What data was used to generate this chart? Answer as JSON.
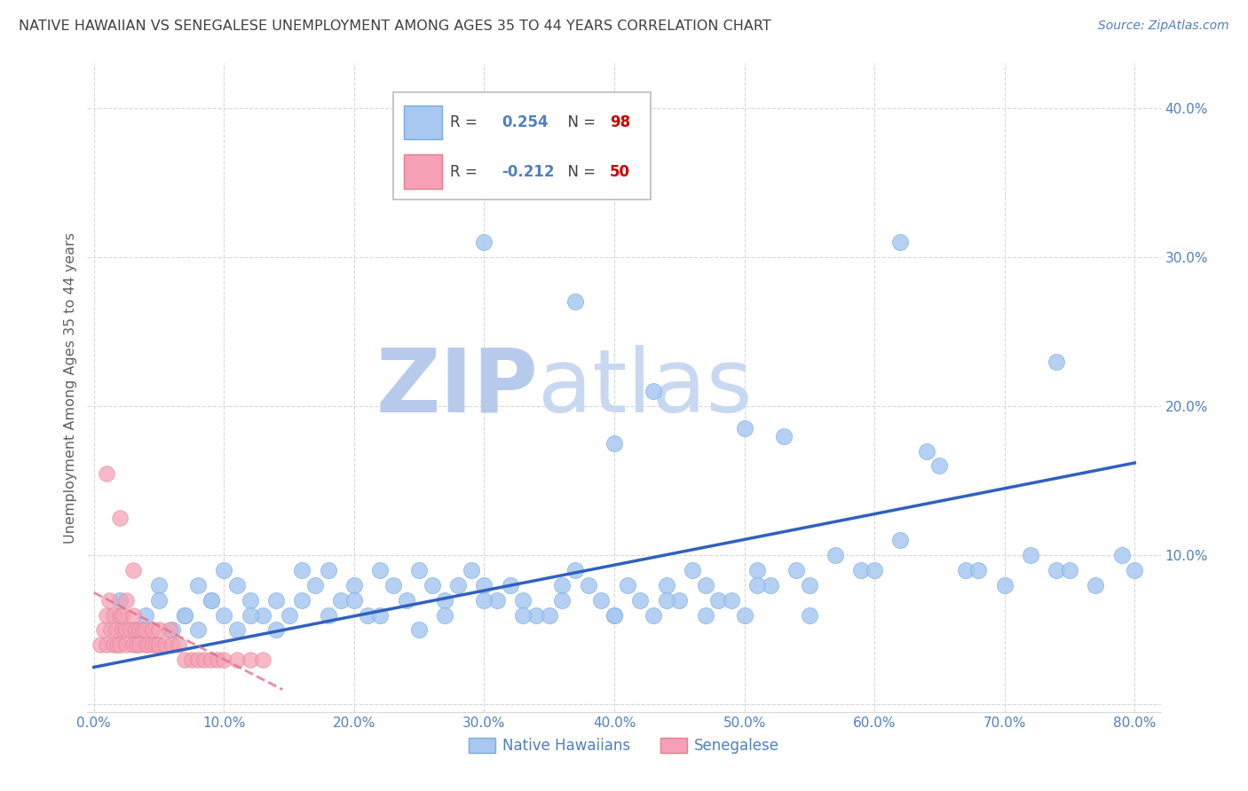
{
  "title": "NATIVE HAWAIIAN VS SENEGALESE UNEMPLOYMENT AMONG AGES 35 TO 44 YEARS CORRELATION CHART",
  "source": "Source: ZipAtlas.com",
  "ylabel": "Unemployment Among Ages 35 to 44 years",
  "xlim": [
    -0.005,
    0.82
  ],
  "ylim": [
    -0.005,
    0.43
  ],
  "yticks": [
    0.0,
    0.1,
    0.2,
    0.3,
    0.4
  ],
  "xticks": [
    0.0,
    0.1,
    0.2,
    0.3,
    0.4,
    0.5,
    0.6,
    0.7,
    0.8
  ],
  "color_blue": "#a8c8f0",
  "color_pink": "#f5a0b5",
  "line_blue": "#3060c0",
  "line_pink": "#e07090",
  "watermark_zip": "ZIP",
  "watermark_atlas": "atlas",
  "watermark_color": "#d0dff5",
  "title_color": "#404040",
  "source_color": "#5080c0",
  "ylabel_color": "#606060",
  "tick_color": "#5080c0",
  "grid_color": "#d8d8d8",
  "blue_trend_x0": 0.0,
  "blue_trend_y0": 0.025,
  "blue_trend_x1": 0.8,
  "blue_trend_y1": 0.162,
  "pink_trend_x0": 0.0,
  "pink_trend_y0": 0.075,
  "pink_trend_x1": 0.145,
  "pink_trend_y1": 0.01,
  "nhawaiian_x": [
    0.02,
    0.05,
    0.06,
    0.07,
    0.08,
    0.09,
    0.1,
    0.11,
    0.12,
    0.13,
    0.14,
    0.15,
    0.16,
    0.17,
    0.18,
    0.19,
    0.2,
    0.21,
    0.22,
    0.23,
    0.24,
    0.25,
    0.26,
    0.27,
    0.28,
    0.29,
    0.3,
    0.31,
    0.32,
    0.33,
    0.34,
    0.35,
    0.36,
    0.37,
    0.38,
    0.39,
    0.4,
    0.41,
    0.42,
    0.43,
    0.44,
    0.45,
    0.46,
    0.47,
    0.48,
    0.49,
    0.5,
    0.51,
    0.52,
    0.54,
    0.55,
    0.57,
    0.59,
    0.6,
    0.62,
    0.64,
    0.65,
    0.67,
    0.68,
    0.7,
    0.72,
    0.74,
    0.75,
    0.77,
    0.79,
    0.8,
    0.03,
    0.04,
    0.05,
    0.07,
    0.08,
    0.09,
    0.1,
    0.11,
    0.12,
    0.14,
    0.16,
    0.18,
    0.2,
    0.22,
    0.25,
    0.27,
    0.3,
    0.33,
    0.36,
    0.4,
    0.44,
    0.47,
    0.51,
    0.55,
    0.3,
    0.37,
    0.43,
    0.53,
    0.62,
    0.74,
    0.5,
    0.4
  ],
  "nhawaiian_y": [
    0.07,
    0.08,
    0.05,
    0.06,
    0.08,
    0.07,
    0.09,
    0.08,
    0.07,
    0.06,
    0.07,
    0.06,
    0.09,
    0.08,
    0.09,
    0.07,
    0.08,
    0.06,
    0.09,
    0.08,
    0.07,
    0.09,
    0.08,
    0.07,
    0.08,
    0.09,
    0.08,
    0.07,
    0.08,
    0.07,
    0.06,
    0.06,
    0.08,
    0.09,
    0.08,
    0.07,
    0.06,
    0.08,
    0.07,
    0.06,
    0.08,
    0.07,
    0.09,
    0.08,
    0.07,
    0.07,
    0.06,
    0.09,
    0.08,
    0.09,
    0.08,
    0.1,
    0.09,
    0.09,
    0.11,
    0.17,
    0.16,
    0.09,
    0.09,
    0.08,
    0.1,
    0.09,
    0.09,
    0.08,
    0.1,
    0.09,
    0.05,
    0.06,
    0.07,
    0.06,
    0.05,
    0.07,
    0.06,
    0.05,
    0.06,
    0.05,
    0.07,
    0.06,
    0.07,
    0.06,
    0.05,
    0.06,
    0.07,
    0.06,
    0.07,
    0.06,
    0.07,
    0.06,
    0.08,
    0.06,
    0.31,
    0.27,
    0.21,
    0.18,
    0.31,
    0.23,
    0.185,
    0.175
  ],
  "senegalese_x": [
    0.005,
    0.008,
    0.01,
    0.01,
    0.012,
    0.013,
    0.015,
    0.015,
    0.017,
    0.018,
    0.02,
    0.02,
    0.022,
    0.022,
    0.025,
    0.025,
    0.025,
    0.028,
    0.03,
    0.03,
    0.032,
    0.033,
    0.035,
    0.035,
    0.038,
    0.04,
    0.04,
    0.042,
    0.045,
    0.045,
    0.048,
    0.05,
    0.05,
    0.055,
    0.058,
    0.06,
    0.065,
    0.07,
    0.075,
    0.08,
    0.085,
    0.09,
    0.095,
    0.1,
    0.11,
    0.12,
    0.13,
    0.01,
    0.02,
    0.03
  ],
  "senegalese_y": [
    0.04,
    0.05,
    0.06,
    0.04,
    0.07,
    0.05,
    0.04,
    0.06,
    0.05,
    0.04,
    0.06,
    0.04,
    0.05,
    0.06,
    0.05,
    0.07,
    0.04,
    0.05,
    0.04,
    0.06,
    0.05,
    0.04,
    0.05,
    0.04,
    0.05,
    0.04,
    0.05,
    0.04,
    0.05,
    0.04,
    0.04,
    0.04,
    0.05,
    0.04,
    0.05,
    0.04,
    0.04,
    0.03,
    0.03,
    0.03,
    0.03,
    0.03,
    0.03,
    0.03,
    0.03,
    0.03,
    0.03,
    0.155,
    0.125,
    0.09
  ]
}
